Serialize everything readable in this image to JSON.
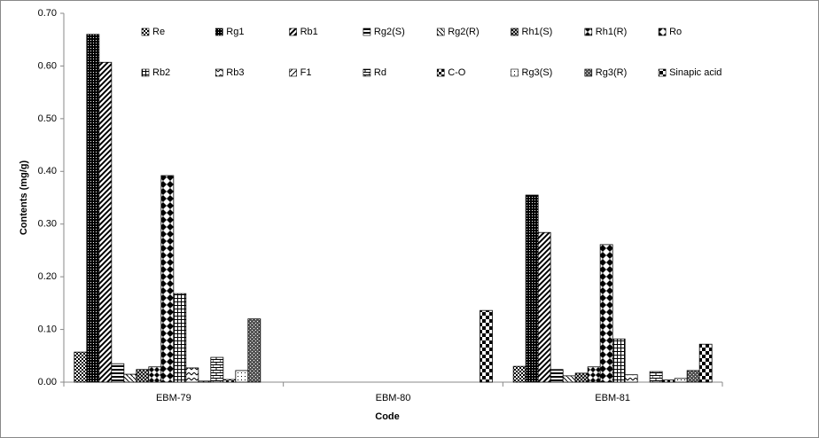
{
  "chart_data": {
    "type": "bar",
    "x_label": "Code",
    "y_label": "Contents (mg/g)",
    "categories": [
      "EBM-79",
      "EBM-80",
      "EBM-81"
    ],
    "ylim": [
      0,
      0.7
    ],
    "yticks": [
      {
        "value": 0,
        "label": "0.00"
      },
      {
        "value": 0.1,
        "label": "0.10"
      },
      {
        "value": 0.2,
        "label": "0.20"
      },
      {
        "value": 0.3,
        "label": "0.30"
      },
      {
        "value": 0.4,
        "label": "0.40"
      },
      {
        "value": 0.5,
        "label": "0.50"
      },
      {
        "value": 0.6,
        "label": "0.60"
      },
      {
        "value": 0.7,
        "label": "0.70"
      }
    ],
    "series": [
      {
        "name": "Re",
        "color": "#000",
        "values": [
          0.057,
          0,
          0.03
        ]
      },
      {
        "name": "Rg1",
        "color": "#000",
        "values": [
          0.66,
          0,
          0.355
        ]
      },
      {
        "name": "Rb1",
        "color": "#000",
        "values": [
          0.607,
          0,
          0.284
        ]
      },
      {
        "name": "Rg2(S)",
        "color": "#000",
        "values": [
          0.035,
          0,
          0.024
        ]
      },
      {
        "name": "Rg2(R)",
        "color": "#000",
        "values": [
          0.015,
          0,
          0.012
        ]
      },
      {
        "name": "Rh1(S)",
        "color": "#000",
        "values": [
          0.024,
          0,
          0.017
        ]
      },
      {
        "name": "Rh1(R)",
        "color": "#000",
        "values": [
          0.029,
          0,
          0.029
        ]
      },
      {
        "name": "Ro",
        "color": "#000",
        "values": [
          0.392,
          0,
          0.261
        ]
      },
      {
        "name": "Rb2",
        "color": "#000",
        "values": [
          0.168,
          0,
          0.082
        ]
      },
      {
        "name": "Rb3",
        "color": "#000",
        "values": [
          0.027,
          0,
          0.014
        ]
      },
      {
        "name": "F1",
        "color": "#000",
        "values": [
          0.002,
          0,
          0
        ]
      },
      {
        "name": "Rd",
        "color": "#000",
        "values": [
          0.047,
          0,
          0.02
        ]
      },
      {
        "name": "C-O",
        "color": "#000",
        "values": [
          0.005,
          0,
          0.004
        ]
      },
      {
        "name": "Rg3(S)",
        "color": "#000",
        "values": [
          0.022,
          0,
          0.007
        ]
      },
      {
        "name": "Rg3(R)",
        "color": "#000",
        "values": [
          0.12,
          0,
          0.022
        ]
      },
      {
        "name": "Sinapic acid",
        "color": "#000",
        "values": [
          0,
          0.136,
          0.072
        ]
      }
    ]
  }
}
